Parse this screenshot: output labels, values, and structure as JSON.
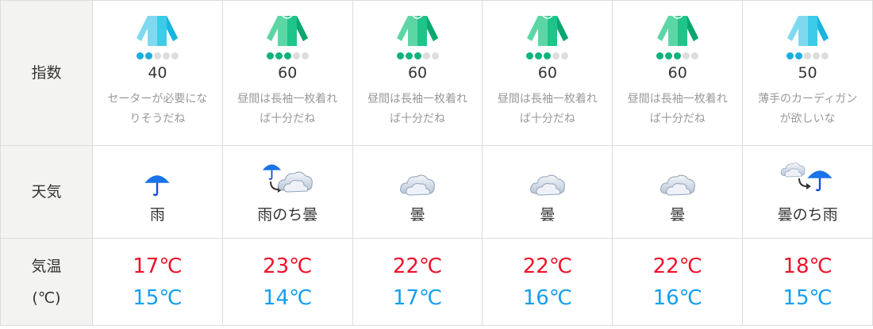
{
  "labels": {
    "index": "指数",
    "weather": "天気",
    "temp": "気温",
    "temp_unit": "(℃)"
  },
  "colors": {
    "high": "#f0112a",
    "low": "#139ff0",
    "blue_level": "#1aaee0",
    "green_level": "#0cb37a",
    "dot_off": "#dddddd"
  },
  "days": [
    {
      "level": 2,
      "level_max": 5,
      "tone": "blue",
      "score": "40",
      "advice": "セーターが必要になりそうだね",
      "weather_icon": "rain",
      "weather": "雨",
      "high": "17℃",
      "low": "15℃"
    },
    {
      "level": 3,
      "level_max": 5,
      "tone": "green",
      "score": "60",
      "advice": "昼間は長袖一枚着れば十分だね",
      "weather_icon": "rain-then-cloudy",
      "weather": "雨のち曇",
      "high": "23℃",
      "low": "14℃"
    },
    {
      "level": 3,
      "level_max": 5,
      "tone": "green",
      "score": "60",
      "advice": "昼間は長袖一枚着れば十分だね",
      "weather_icon": "cloudy",
      "weather": "曇",
      "high": "22℃",
      "low": "17℃"
    },
    {
      "level": 3,
      "level_max": 5,
      "tone": "green",
      "score": "60",
      "advice": "昼間は長袖一枚着れば十分だね",
      "weather_icon": "cloudy",
      "weather": "曇",
      "high": "22℃",
      "low": "16℃"
    },
    {
      "level": 3,
      "level_max": 5,
      "tone": "green",
      "score": "60",
      "advice": "昼間は長袖一枚着れば十分だね",
      "weather_icon": "cloudy",
      "weather": "曇",
      "high": "22℃",
      "low": "16℃"
    },
    {
      "level": 2,
      "level_max": 5,
      "tone": "blue",
      "score": "50",
      "advice": "薄手のカーディガンが欲しいな",
      "weather_icon": "cloudy-then-rain",
      "weather": "曇のち雨",
      "high": "18℃",
      "low": "15℃"
    }
  ]
}
